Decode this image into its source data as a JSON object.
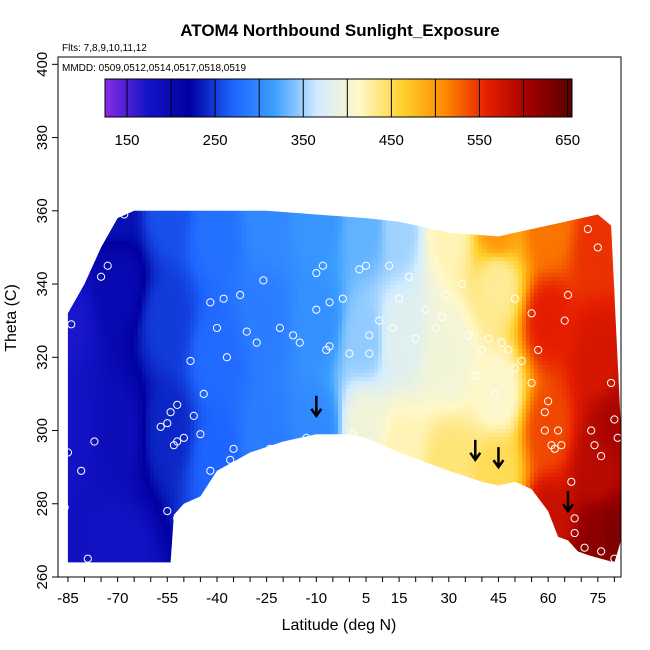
{
  "chart_data": {
    "type": "heatmap",
    "title": "ATOM4 Northbound Sunlight_Exposure",
    "subtitle_flights": "Flts: 7,8,9,10,11,12",
    "subtitle_dates": "MMDD: 0509,0512,0514,0517,0518,0519",
    "xlabel": "Latitude (deg N)",
    "ylabel": "Theta (C)",
    "xlim": [
      -88,
      82
    ],
    "ylim": [
      260,
      402
    ],
    "x_ticks": [
      -85,
      -70,
      -55,
      -40,
      -25,
      -10,
      5,
      15,
      30,
      45,
      60,
      75
    ],
    "y_ticks": [
      260,
      280,
      300,
      320,
      340,
      360,
      380,
      400
    ],
    "colorbar": {
      "min": 125,
      "max": 655,
      "ticks": [
        150,
        250,
        350,
        450,
        550,
        650
      ],
      "colors": [
        "#8a2be2",
        "#1414c8",
        "#0000a0",
        "#1e64ff",
        "#3c9fff",
        "#d2ecff",
        "#fff8c8",
        "#ffd230",
        "#ff8a00",
        "#e61e00",
        "#a00000",
        "#5a0000"
      ]
    },
    "field_nodes": [
      {
        "lat": -85,
        "theta": 265,
        "value": 180
      },
      {
        "lat": -85,
        "theta": 300,
        "value": 175
      },
      {
        "lat": -85,
        "theta": 330,
        "value": 170
      },
      {
        "lat": -70,
        "theta": 265,
        "value": 175
      },
      {
        "lat": -70,
        "theta": 300,
        "value": 190
      },
      {
        "lat": -70,
        "theta": 340,
        "value": 200
      },
      {
        "lat": -70,
        "theta": 360,
        "value": 230
      },
      {
        "lat": -55,
        "theta": 300,
        "value": 240
      },
      {
        "lat": -55,
        "theta": 330,
        "value": 250
      },
      {
        "lat": -55,
        "theta": 360,
        "value": 260
      },
      {
        "lat": -40,
        "theta": 292,
        "value": 270
      },
      {
        "lat": -40,
        "theta": 320,
        "value": 275
      },
      {
        "lat": -40,
        "theta": 355,
        "value": 280
      },
      {
        "lat": -25,
        "theta": 298,
        "value": 290
      },
      {
        "lat": -25,
        "theta": 330,
        "value": 290
      },
      {
        "lat": -25,
        "theta": 358,
        "value": 300
      },
      {
        "lat": -10,
        "theta": 300,
        "value": 300
      },
      {
        "lat": -10,
        "theta": 330,
        "value": 305
      },
      {
        "lat": -10,
        "theta": 358,
        "value": 310
      },
      {
        "lat": 5,
        "theta": 300,
        "value": 400
      },
      {
        "lat": 5,
        "theta": 325,
        "value": 345
      },
      {
        "lat": 5,
        "theta": 355,
        "value": 330
      },
      {
        "lat": 15,
        "theta": 295,
        "value": 420
      },
      {
        "lat": 15,
        "theta": 325,
        "value": 380
      },
      {
        "lat": 15,
        "theta": 355,
        "value": 350
      },
      {
        "lat": 30,
        "theta": 290,
        "value": 440
      },
      {
        "lat": 30,
        "theta": 320,
        "value": 400
      },
      {
        "lat": 30,
        "theta": 355,
        "value": 420
      },
      {
        "lat": 45,
        "theta": 288,
        "value": 450
      },
      {
        "lat": 45,
        "theta": 310,
        "value": 410
      },
      {
        "lat": 45,
        "theta": 340,
        "value": 430
      },
      {
        "lat": 45,
        "theta": 355,
        "value": 500
      },
      {
        "lat": 60,
        "theta": 275,
        "value": 580
      },
      {
        "lat": 60,
        "theta": 300,
        "value": 540
      },
      {
        "lat": 60,
        "theta": 330,
        "value": 560
      },
      {
        "lat": 60,
        "theta": 355,
        "value": 520
      },
      {
        "lat": 75,
        "theta": 268,
        "value": 620
      },
      {
        "lat": 75,
        "theta": 290,
        "value": 590
      },
      {
        "lat": 75,
        "theta": 320,
        "value": 570
      },
      {
        "lat": 75,
        "theta": 350,
        "value": 550
      },
      {
        "lat": 80,
        "theta": 270,
        "value": 630
      },
      {
        "lat": 80,
        "theta": 300,
        "value": 600
      }
    ],
    "coverage_top": [
      [
        -85,
        332
      ],
      [
        -80,
        340
      ],
      [
        -75,
        350
      ],
      [
        -70,
        358
      ],
      [
        -65,
        360
      ],
      [
        -55,
        360
      ],
      [
        -40,
        360
      ],
      [
        -25,
        360
      ],
      [
        -10,
        359
      ],
      [
        5,
        358
      ],
      [
        15,
        357
      ],
      [
        30,
        354
      ],
      [
        45,
        353
      ],
      [
        60,
        356
      ],
      [
        70,
        358
      ],
      [
        75,
        359
      ],
      [
        79,
        356
      ],
      [
        82,
        300
      ]
    ],
    "coverage_bottom": [
      [
        -85,
        264
      ],
      [
        -78,
        264
      ],
      [
        -70,
        264
      ],
      [
        -60,
        264
      ],
      [
        -54,
        264
      ],
      [
        -53,
        277
      ],
      [
        -50,
        280
      ],
      [
        -45,
        282
      ],
      [
        -40,
        289
      ],
      [
        -30,
        294
      ],
      [
        -20,
        297
      ],
      [
        -10,
        299
      ],
      [
        0,
        299
      ],
      [
        5,
        298
      ],
      [
        15,
        294
      ],
      [
        30,
        289
      ],
      [
        40,
        286
      ],
      [
        45,
        285
      ],
      [
        50,
        286
      ],
      [
        55,
        284
      ],
      [
        60,
        278
      ],
      [
        63,
        271
      ],
      [
        66,
        270
      ],
      [
        69,
        267
      ],
      [
        72,
        266
      ],
      [
        76,
        265
      ],
      [
        80,
        264
      ],
      [
        82,
        270
      ]
    ],
    "arrows": [
      {
        "lat": -10,
        "theta": 304
      },
      {
        "lat": 38,
        "theta": 292
      },
      {
        "lat": 45,
        "theta": 290
      },
      {
        "lat": 66,
        "theta": 278
      }
    ],
    "observations": [
      [
        -85,
        294
      ],
      [
        -86,
        279
      ],
      [
        -84,
        329
      ],
      [
        -81,
        289
      ],
      [
        -79,
        265
      ],
      [
        -77,
        297
      ],
      [
        -75,
        342
      ],
      [
        -73,
        345
      ],
      [
        -68,
        359
      ],
      [
        -66,
        361
      ],
      [
        -55,
        278
      ],
      [
        -52,
        276
      ],
      [
        -57,
        301
      ],
      [
        -55,
        302
      ],
      [
        -54,
        305
      ],
      [
        -53,
        296
      ],
      [
        -52,
        297
      ],
      [
        -50,
        298
      ],
      [
        -52,
        307
      ],
      [
        -47,
        304
      ],
      [
        -45,
        299
      ],
      [
        -44,
        310
      ],
      [
        -42,
        289
      ],
      [
        -40,
        328
      ],
      [
        -38,
        336
      ],
      [
        -37,
        320
      ],
      [
        -35,
        295
      ],
      [
        -36,
        292
      ],
      [
        -33,
        337
      ],
      [
        -31,
        327
      ],
      [
        -28,
        324
      ],
      [
        -26,
        341
      ],
      [
        -24,
        295
      ],
      [
        -21,
        328
      ],
      [
        -17,
        326
      ],
      [
        -15,
        324
      ],
      [
        -13,
        298
      ],
      [
        -10,
        343
      ],
      [
        -8,
        345
      ],
      [
        -6,
        335
      ],
      [
        -7,
        322
      ],
      [
        -6,
        323
      ],
      [
        -2,
        336
      ],
      [
        0,
        321
      ],
      [
        1,
        299
      ],
      [
        3,
        344
      ],
      [
        5,
        345
      ],
      [
        6,
        326
      ],
      [
        6,
        321
      ],
      [
        9,
        330
      ],
      [
        12,
        345
      ],
      [
        13,
        328
      ],
      [
        15,
        336
      ],
      [
        18,
        342
      ],
      [
        20,
        325
      ],
      [
        23,
        333
      ],
      [
        26,
        328
      ],
      [
        29,
        337
      ],
      [
        34,
        340
      ],
      [
        36,
        326
      ],
      [
        38,
        315
      ],
      [
        40,
        322
      ],
      [
        42,
        325
      ],
      [
        44,
        310
      ],
      [
        46,
        324
      ],
      [
        48,
        322
      ],
      [
        50,
        317
      ],
      [
        52,
        319
      ],
      [
        55,
        313
      ],
      [
        57,
        322
      ],
      [
        59,
        300
      ],
      [
        60,
        308
      ],
      [
        61,
        296
      ],
      [
        62,
        295
      ],
      [
        63,
        300
      ],
      [
        64,
        296
      ],
      [
        65,
        330
      ],
      [
        66,
        337
      ],
      [
        67,
        286
      ],
      [
        68,
        276
      ],
      [
        68,
        272
      ],
      [
        70,
        265
      ],
      [
        71,
        268
      ],
      [
        72,
        355
      ],
      [
        73,
        300
      ],
      [
        74,
        296
      ],
      [
        75,
        350
      ],
      [
        76,
        293
      ],
      [
        76,
        267
      ],
      [
        79,
        313
      ],
      [
        80,
        303
      ],
      [
        80,
        265
      ],
      [
        81,
        298
      ],
      [
        59,
        305
      ],
      [
        55,
        332
      ],
      [
        50,
        336
      ],
      [
        28,
        331
      ],
      [
        -10,
        333
      ],
      [
        -42,
        335
      ],
      [
        -48,
        319
      ]
    ]
  }
}
